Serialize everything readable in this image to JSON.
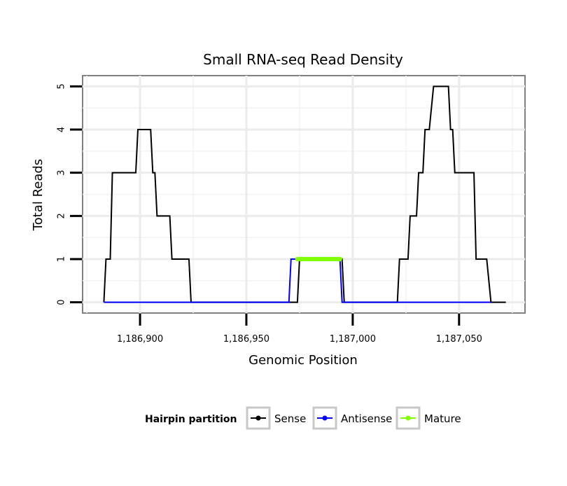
{
  "chart_data": {
    "type": "line",
    "title": "Small RNA-seq Read Density",
    "xlabel": "Genomic Position",
    "ylabel": "Total Reads",
    "xlim": [
      1186873,
      1187081
    ],
    "ylim": [
      -0.25,
      5.25
    ],
    "x_ticks": [
      1186900,
      1186950,
      1187000,
      1187050
    ],
    "x_tick_labels": [
      "1,186,900",
      "1,186,950",
      "1,187,000",
      "1,187,050"
    ],
    "y_ticks": [
      0,
      1,
      2,
      3,
      4,
      5
    ],
    "y_tick_labels": [
      "0",
      "1",
      "2",
      "3",
      "4",
      "5"
    ],
    "legend": {
      "title": "Hairpin partition",
      "position": "bottom",
      "entries": [
        "Sense",
        "Antisense",
        "Mature"
      ]
    },
    "series": [
      {
        "name": "Sense",
        "color": "#000000",
        "x": [
          1186883,
          1186884,
          1186885,
          1186886,
          1186887,
          1186888,
          1186898,
          1186899,
          1186905,
          1186906,
          1186907,
          1186908,
          1186911,
          1186912,
          1186914,
          1186915,
          1186923,
          1186924,
          1186974,
          1186975,
          1186995,
          1186996,
          1187021,
          1187022,
          1187026,
          1187027,
          1187030,
          1187031,
          1187033,
          1187034,
          1187035,
          1187036,
          1187038,
          1187039,
          1187040,
          1187041,
          1187045,
          1187046,
          1187047,
          1187048,
          1187057,
          1187058,
          1187062,
          1187063,
          1187065,
          1187066,
          1187072
        ],
        "values": [
          0,
          1,
          1,
          1,
          3,
          3,
          3,
          4,
          4,
          3,
          3,
          2,
          2,
          2,
          2,
          1,
          1,
          0,
          0,
          1,
          1,
          0,
          0,
          1,
          1,
          2,
          2,
          3,
          3,
          4,
          4,
          4,
          5,
          5,
          5,
          5,
          5,
          4,
          4,
          3,
          3,
          1,
          1,
          1,
          0,
          0,
          0
        ]
      },
      {
        "name": "Antisense",
        "color": "#0000ff",
        "x": [
          1186883,
          1186970,
          1186971,
          1186994,
          1186995,
          1187065
        ],
        "values": [
          0,
          0,
          1,
          1,
          0,
          0
        ]
      },
      {
        "name": "Mature",
        "color": "#7fff00",
        "x": [
          1186974,
          1186994
        ],
        "values": [
          1,
          1
        ]
      }
    ]
  }
}
